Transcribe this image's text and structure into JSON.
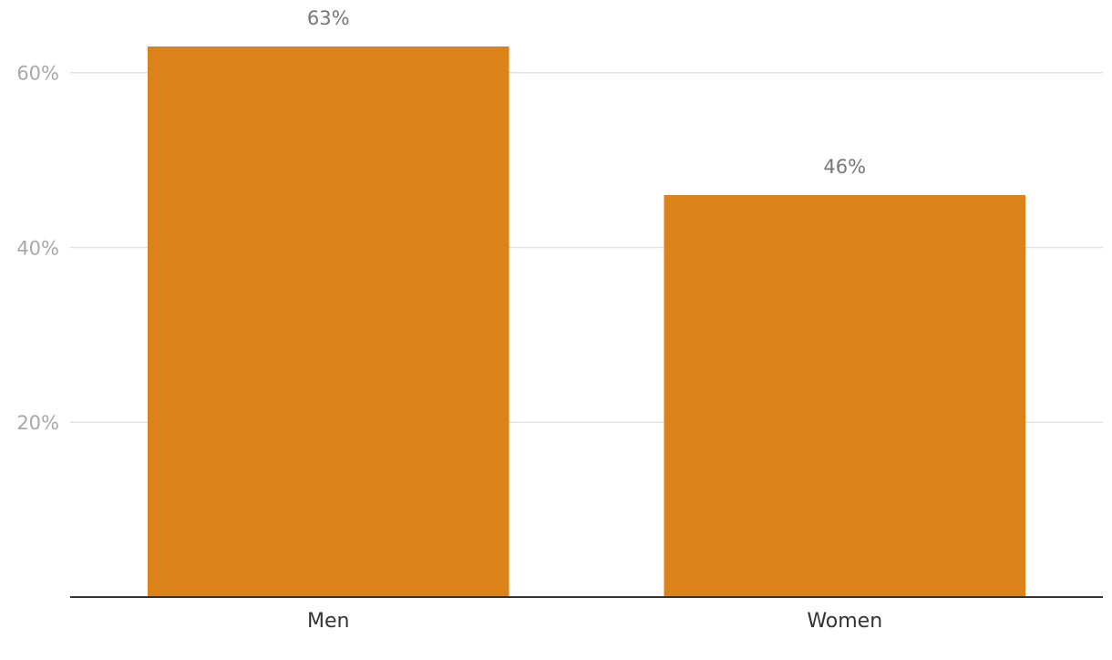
{
  "chart_data": {
    "type": "bar",
    "categories": [
      "Men",
      "Women"
    ],
    "values": [
      63,
      46
    ],
    "value_labels": [
      "63%",
      "46%"
    ],
    "color": "#db8218",
    "ylim": [
      0,
      68
    ],
    "yticks": [
      {
        "value": 20,
        "label": "20%"
      },
      {
        "value": 40,
        "label": "40%"
      },
      {
        "value": 60,
        "label": "60%"
      }
    ],
    "grid": true
  }
}
